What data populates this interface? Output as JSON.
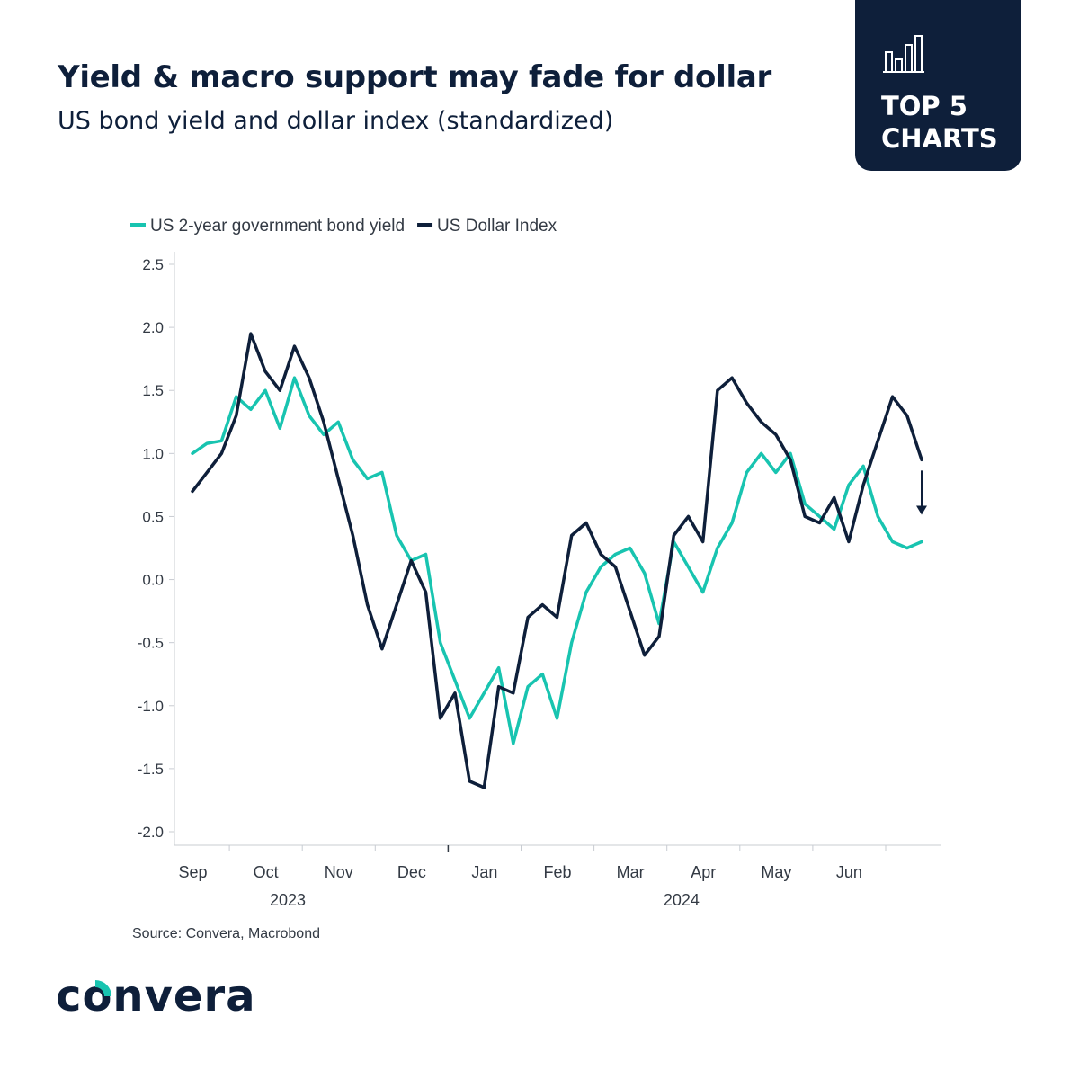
{
  "header": {
    "title": "Yield & macro support may fade for dollar",
    "subtitle": "US bond yield and dollar index (standardized)"
  },
  "badge": {
    "label": "TOP 5\nCHARTS",
    "icon": "bar-chart-icon"
  },
  "footer": {
    "source": "Source: Convera, Macrobond"
  },
  "logo": {
    "text": "convera",
    "icon": "convera-logo"
  },
  "colors": {
    "navy": "#0e1f3a",
    "teal": "#18c4b0"
  },
  "chart_data": {
    "type": "line",
    "title": "US bond yield and dollar index (standardized)",
    "ylim": [
      -2.0,
      2.5
    ],
    "yticks": [
      2.5,
      2.0,
      1.5,
      1.0,
      0.5,
      0.0,
      -0.5,
      -1.0,
      -1.5,
      -2.0
    ],
    "ytick_labels": [
      "2.5",
      "2.0",
      "1.5",
      "1.0",
      "0.5",
      "0.0",
      "-0.5",
      "-1.0",
      "-1.5",
      "-2.0"
    ],
    "xlim": [
      0,
      10
    ],
    "month_labels": [
      "Sep",
      "Oct",
      "Nov",
      "Dec",
      "Jan",
      "Feb",
      "Mar",
      "Apr",
      "May",
      "Jun"
    ],
    "year_labels": [
      {
        "label": "2023",
        "center": 1.8
      },
      {
        "label": "2024",
        "center": 7.2
      }
    ],
    "legend_position": "top-left",
    "annotation": "down-arrow at end of US Dollar Index",
    "series": [
      {
        "name": "US 2-year government bond yield",
        "color": "#18c4b0",
        "x": [
          0,
          0.2,
          0.4,
          0.6,
          0.8,
          1.0,
          1.2,
          1.4,
          1.6,
          1.8,
          2.0,
          2.2,
          2.4,
          2.6,
          2.8,
          3.0,
          3.2,
          3.4,
          3.6,
          3.8,
          4.0,
          4.2,
          4.4,
          4.6,
          4.8,
          5.0,
          5.2,
          5.4,
          5.6,
          5.8,
          6.0,
          6.2,
          6.4,
          6.6,
          6.8,
          7.0,
          7.2,
          7.4,
          7.6,
          7.8,
          8.0,
          8.2,
          8.4,
          8.6,
          8.8,
          9.0,
          9.2,
          9.4,
          9.6,
          9.8,
          10.0
        ],
        "values": [
          1.0,
          1.08,
          1.1,
          1.45,
          1.35,
          1.5,
          1.2,
          1.6,
          1.3,
          1.15,
          1.25,
          0.95,
          0.8,
          0.85,
          0.35,
          0.15,
          0.2,
          -0.5,
          -0.8,
          -1.1,
          -0.9,
          -0.7,
          -1.3,
          -0.85,
          -0.75,
          -1.1,
          -0.5,
          -0.1,
          0.1,
          0.2,
          0.25,
          0.05,
          -0.35,
          0.3,
          0.1,
          -0.1,
          0.25,
          0.45,
          0.85,
          1.0,
          0.85,
          1.0,
          0.6,
          0.5,
          0.4,
          0.75,
          0.9,
          0.5,
          0.3,
          0.25,
          0.3
        ]
      },
      {
        "name": "US Dollar Index",
        "color": "#0e1f3a",
        "x": [
          0,
          0.2,
          0.4,
          0.6,
          0.8,
          1.0,
          1.2,
          1.4,
          1.6,
          1.8,
          2.0,
          2.2,
          2.4,
          2.6,
          2.8,
          3.0,
          3.2,
          3.4,
          3.6,
          3.8,
          4.0,
          4.2,
          4.4,
          4.6,
          4.8,
          5.0,
          5.2,
          5.4,
          5.6,
          5.8,
          6.0,
          6.2,
          6.4,
          6.6,
          6.8,
          7.0,
          7.2,
          7.4,
          7.6,
          7.8,
          8.0,
          8.2,
          8.4,
          8.6,
          8.8,
          9.0,
          9.2,
          9.4,
          9.6,
          9.8,
          10.0
        ],
        "values": [
          0.7,
          0.85,
          1.0,
          1.3,
          1.95,
          1.65,
          1.5,
          1.85,
          1.6,
          1.25,
          0.8,
          0.35,
          -0.2,
          -0.55,
          -0.2,
          0.15,
          -0.1,
          -1.1,
          -0.9,
          -1.6,
          -1.65,
          -0.85,
          -0.9,
          -0.3,
          -0.2,
          -0.3,
          0.35,
          0.45,
          0.2,
          0.1,
          -0.25,
          -0.6,
          -0.45,
          0.35,
          0.5,
          0.3,
          1.5,
          1.6,
          1.4,
          1.25,
          1.15,
          0.95,
          0.5,
          0.45,
          0.65,
          0.3,
          0.75,
          1.1,
          1.45,
          1.3,
          0.95
        ]
      }
    ]
  }
}
